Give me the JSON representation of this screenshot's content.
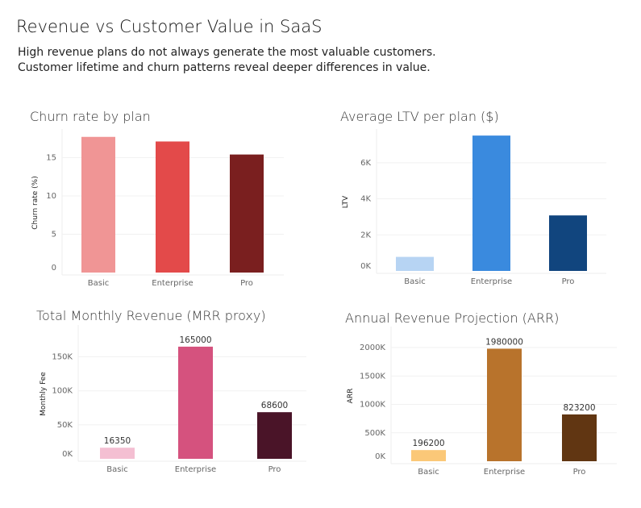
{
  "title": "Revenue vs Customer Value in SaaS",
  "subtitle": [
    "High revenue plans do not always generate the most valuable customers.",
    "Customer lifetime and churn patterns reveal deeper differences in value."
  ],
  "chart_data": [
    {
      "type": "bar",
      "title": "Churn rate by plan",
      "xlabel": "",
      "ylabel": "Churn rate (%)",
      "categories": [
        "Basic",
        "Enterprise",
        "Pro"
      ],
      "values": [
        17.7,
        17.1,
        15.4
      ],
      "colors": [
        "#f09595",
        "#e34a4a",
        "#7a1f1f"
      ],
      "yticks": [
        0,
        5,
        10,
        15
      ],
      "ytick_labels": [
        "0",
        "5",
        "10",
        "15"
      ],
      "ylim": [
        0,
        18.2
      ],
      "grid": true,
      "data_labels": []
    },
    {
      "type": "bar",
      "title": "Average LTV per plan ($)",
      "xlabel": "",
      "ylabel": "LTV",
      "categories": [
        "Basic",
        "Enterprise",
        "Pro"
      ],
      "values": [
        780,
        7510,
        3080
      ],
      "colors": [
        "#b7d4f3",
        "#3a8ade",
        "#11457e"
      ],
      "yticks": [
        0,
        2000,
        4000,
        6000
      ],
      "ytick_labels": [
        "0K",
        "2K",
        "4K",
        "6K"
      ],
      "ylim": [
        0,
        7650
      ],
      "grid": true,
      "data_labels": []
    },
    {
      "type": "bar",
      "title": "Total Monthly Revenue (MRR proxy)",
      "xlabel": "",
      "ylabel": "Monthly Fee",
      "categories": [
        "Basic",
        "Enterprise",
        "Pro"
      ],
      "values": [
        16350,
        165000,
        68600
      ],
      "colors": [
        "#f4bfd2",
        "#d5527e",
        "#4a1428"
      ],
      "yticks": [
        0,
        50000,
        100000,
        150000
      ],
      "ytick_labels": [
        "0K",
        "50K",
        "100K",
        "150K"
      ],
      "ylim": [
        0,
        191000
      ],
      "grid": true,
      "data_labels": [
        "16350",
        "165000",
        "68600"
      ]
    },
    {
      "type": "bar",
      "title": "Annual Revenue Projection (ARR)",
      "xlabel": "",
      "ylabel": "ARR",
      "categories": [
        "Basic",
        "Enterprise",
        "Pro"
      ],
      "values": [
        196200,
        1980000,
        823200
      ],
      "colors": [
        "#fbc878",
        "#b8732c",
        "#613612"
      ],
      "yticks": [
        0,
        500000,
        1000000,
        1500000,
        2000000
      ],
      "ytick_labels": [
        "0K",
        "500K",
        "1000K",
        "1500K",
        "2000K"
      ],
      "ylim": [
        0,
        2298000
      ],
      "grid": true,
      "data_labels": [
        "196200",
        "1980000",
        "823200"
      ]
    }
  ]
}
